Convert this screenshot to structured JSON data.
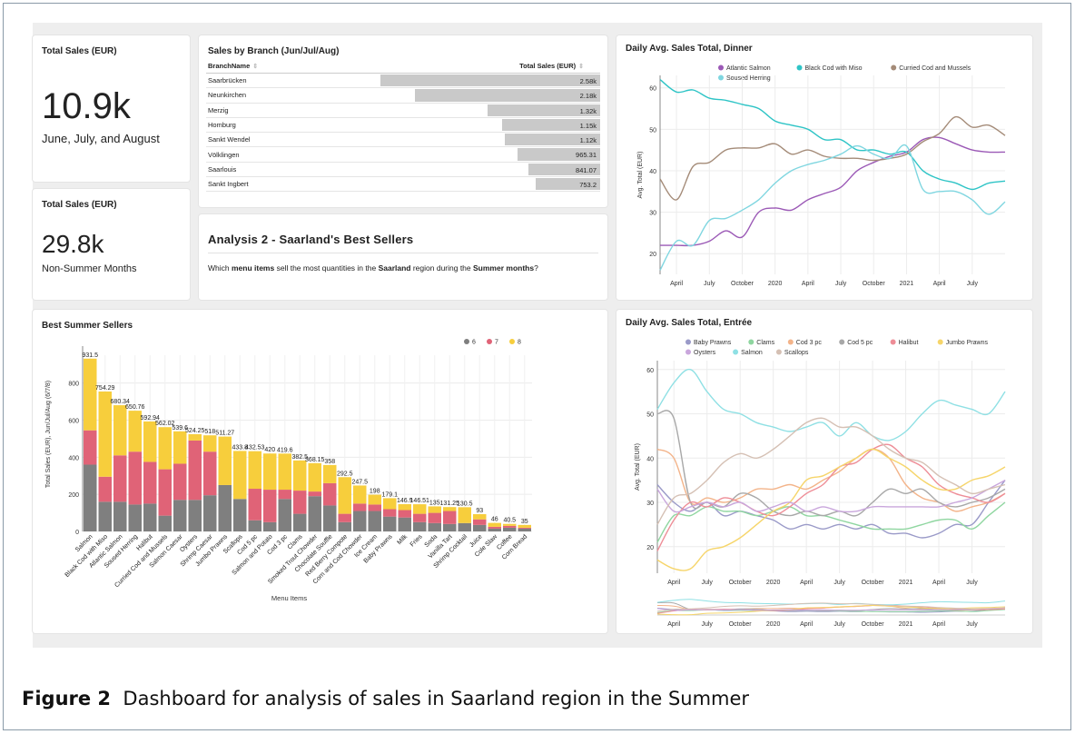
{
  "kpi_summer": {
    "title": "Total Sales (EUR)",
    "value": "10.9k",
    "subtitle": "June, July, and August"
  },
  "kpi_nonsummer": {
    "title": "Total Sales (EUR)",
    "value": "29.8k",
    "subtitle": "Non-Summer Months"
  },
  "branch_table": {
    "title": "Sales by Branch (Jun/Jul/Aug)",
    "col_branch": "BranchName",
    "col_total": "Total Sales (EUR)",
    "max_value": 2580,
    "rows": [
      {
        "name": "Saarbrücken",
        "label": "2.58k",
        "value": 2580
      },
      {
        "name": "Neunkirchen",
        "label": "2.18k",
        "value": 2180
      },
      {
        "name": "Merzig",
        "label": "1.32k",
        "value": 1320
      },
      {
        "name": "Homburg",
        "label": "1.15k",
        "value": 1150
      },
      {
        "name": "Sankt Wendel",
        "label": "1.12k",
        "value": 1120
      },
      {
        "name": "Völklingen",
        "label": "965.31",
        "value": 965.31
      },
      {
        "name": "Saarlouis",
        "label": "841.07",
        "value": 841.07
      },
      {
        "name": "Sankt Ingbert",
        "label": "753.2",
        "value": 753.2
      }
    ]
  },
  "analysis": {
    "title": "Analysis 2 - Saarland's Best Sellers",
    "q1": "Which ",
    "q2": "menu items",
    "q3": " sell the most quantities in the ",
    "q4": "Saarland",
    "q5": " region during the ",
    "q6": "Summer months",
    "q7": "?"
  },
  "caption": {
    "label": "Figure 2",
    "text": "Dashboard for analysis of sales in Saarland region in the Summer"
  },
  "chart_data": [
    {
      "type": "line",
      "title": "Daily Avg. Sales Total, Dinner",
      "ylabel": "Avg. Total (EUR)",
      "ylim": [
        15,
        63
      ],
      "yticks": [
        20,
        30,
        40,
        50,
        60
      ],
      "x_ticks": [
        "April",
        "July",
        "October",
        "2020",
        "April",
        "July",
        "October",
        "2021",
        "April",
        "July"
      ],
      "x_range": [
        0,
        10.5
      ],
      "legend_position": "top",
      "grid": true,
      "series": [
        {
          "name": "Atlantic Salmon",
          "color": "#9b59b6",
          "x": [
            0,
            0.5,
            1,
            1.5,
            2,
            2.5,
            3,
            3.5,
            4,
            4.5,
            5,
            5.5,
            6,
            6.5,
            7,
            7.5,
            8,
            8.5,
            9,
            9.5,
            10,
            10.5
          ],
          "y": [
            22,
            22,
            22,
            23,
            25.5,
            24,
            30,
            31,
            30.5,
            33,
            34.5,
            36,
            40,
            42,
            43.5,
            44.5,
            47.5,
            48,
            46.5,
            45,
            44.5,
            44.5
          ]
        },
        {
          "name": "Black Cod with Miso",
          "color": "#2ec4c6",
          "x": [
            0,
            0.5,
            1,
            1.5,
            2,
            2.5,
            3,
            3.5,
            4,
            4.5,
            5,
            5.5,
            6,
            6.5,
            7,
            7.5,
            8,
            8.5,
            9,
            9.5,
            10,
            10.5
          ],
          "y": [
            62,
            59,
            59.5,
            57.5,
            57,
            56,
            55,
            52,
            51,
            50,
            47.5,
            47.5,
            45,
            45,
            44,
            44.5,
            40,
            38,
            37,
            35.5,
            37,
            37.5
          ]
        },
        {
          "name": "Curried Cod and Mussels",
          "color": "#a48b78",
          "x": [
            0,
            0.5,
            1,
            1.5,
            2,
            2.5,
            3,
            3.5,
            4,
            4.5,
            5,
            5.5,
            6,
            6.5,
            7,
            7.5,
            8,
            8.5,
            9,
            9.5,
            10,
            10.5
          ],
          "y": [
            38,
            33,
            41,
            42,
            45,
            45.5,
            45.5,
            46.5,
            44,
            45,
            43.5,
            43,
            43,
            42.5,
            43,
            44,
            47,
            49,
            53,
            50.5,
            51,
            48.5
          ]
        },
        {
          "name": "Soused Herring",
          "color": "#7fd6e0",
          "x": [
            0,
            0.5,
            1,
            1.5,
            2,
            2.5,
            3,
            3.5,
            4,
            4.5,
            5,
            5.5,
            6,
            6.5,
            7,
            7.5,
            8,
            8.5,
            9,
            9.5,
            10,
            10.5
          ],
          "y": [
            16,
            23,
            22,
            28,
            28.5,
            30.5,
            33,
            37,
            40,
            41.5,
            42.5,
            44,
            46,
            44,
            43,
            46,
            35.5,
            35,
            35,
            33,
            29.5,
            32.5
          ]
        }
      ]
    },
    {
      "type": "line",
      "title": "Daily Avg. Sales Total, Entrée",
      "ylabel": "Avg. Total (EUR)",
      "ylim": [
        14,
        62
      ],
      "yticks": [
        20,
        30,
        40,
        50,
        60
      ],
      "x_ticks": [
        "April",
        "July",
        "October",
        "2020",
        "April",
        "July",
        "October",
        "2021",
        "April",
        "July"
      ],
      "x_range": [
        0,
        10.5
      ],
      "legend_position": "top",
      "grid": true,
      "series": [
        {
          "name": "Baby Prawns",
          "color": "#9a9ac8",
          "x": [
            0,
            0.5,
            1,
            1.5,
            2,
            2.5,
            3,
            3.5,
            4,
            4.5,
            5,
            5.5,
            6,
            6.5,
            7,
            7.5,
            8,
            8.5,
            9,
            9.5,
            10,
            10.5
          ],
          "y": [
            34,
            30,
            28,
            30,
            27,
            28,
            27,
            26,
            24,
            25,
            24,
            25,
            24,
            25,
            23,
            23,
            22,
            23,
            25,
            25,
            30,
            35
          ]
        },
        {
          "name": "Clams",
          "color": "#8fd6a0",
          "x": [
            0,
            0.5,
            1,
            1.5,
            2,
            2.5,
            3,
            3.5,
            4,
            4.5,
            5,
            5.5,
            6,
            6.5,
            7,
            7.5,
            8,
            8.5,
            9,
            9.5,
            10,
            10.5
          ],
          "y": [
            21,
            27,
            27,
            29,
            28,
            28,
            27,
            28,
            29,
            27,
            27,
            26,
            25,
            24,
            24,
            24,
            25,
            26,
            26,
            24,
            27,
            30
          ]
        },
        {
          "name": "Cod 3 pc",
          "color": "#f3b48a",
          "x": [
            0,
            0.5,
            1,
            1.5,
            2,
            2.5,
            3,
            3.5,
            4,
            4.5,
            5,
            5.5,
            6,
            6.5,
            7,
            7.5,
            8,
            8.5,
            9,
            9.5,
            10,
            10.5
          ],
          "y": [
            42,
            40,
            30,
            31,
            30,
            31,
            33,
            33,
            34,
            33,
            35,
            37,
            40,
            42,
            40,
            34,
            31,
            30,
            28,
            29,
            30,
            32
          ]
        },
        {
          "name": "Cod 5 pc",
          "color": "#a8a8a8",
          "x": [
            0,
            0.5,
            1,
            1.5,
            2,
            2.5,
            3,
            3.5,
            4,
            4.5,
            5,
            5.5,
            6,
            6.5,
            7,
            7.5,
            8,
            8.5,
            9,
            9.5,
            10,
            10.5
          ],
          "y": [
            50,
            49,
            30,
            30,
            29,
            32,
            31,
            28,
            27,
            28,
            27,
            28,
            27,
            30,
            33,
            32,
            33,
            30,
            29,
            30,
            31,
            33
          ]
        },
        {
          "name": "Halibut",
          "color": "#ee8d97",
          "x": [
            0,
            0.5,
            1,
            1.5,
            2,
            2.5,
            3,
            3.5,
            4,
            4.5,
            5,
            5.5,
            6,
            6.5,
            7,
            7.5,
            8,
            8.5,
            9,
            9.5,
            10,
            10.5
          ],
          "y": [
            19,
            26,
            30,
            29,
            31,
            30,
            28,
            27,
            29,
            32,
            34,
            38,
            39,
            42,
            43,
            40,
            38,
            34,
            32,
            31,
            30,
            32
          ]
        },
        {
          "name": "Jumbo Prawns",
          "color": "#f6d56a",
          "x": [
            0,
            0.5,
            1,
            1.5,
            2,
            2.5,
            3,
            3.5,
            4,
            4.5,
            5,
            5.5,
            6,
            6.5,
            7,
            7.5,
            8,
            8.5,
            9,
            9.5,
            10,
            10.5
          ],
          "y": [
            17,
            15,
            15,
            19,
            20,
            22,
            25,
            28,
            30,
            35,
            36,
            38,
            40,
            42,
            40,
            38,
            35,
            33,
            33,
            35,
            36,
            38
          ]
        },
        {
          "name": "Oysters",
          "color": "#c9a6dc",
          "x": [
            0,
            0.5,
            1,
            1.5,
            2,
            2.5,
            3,
            3.5,
            4,
            4.5,
            5,
            5.5,
            6,
            6.5,
            7,
            7.5,
            8,
            8.5,
            9,
            9.5,
            10,
            10.5
          ],
          "y": [
            33,
            28,
            29,
            30,
            29,
            30,
            28,
            29,
            30,
            28,
            29,
            28,
            28,
            29,
            29,
            29,
            29,
            29,
            30,
            31,
            33,
            35
          ]
        },
        {
          "name": "Salmon",
          "color": "#8fe0e4",
          "x": [
            0,
            0.5,
            1,
            1.5,
            2,
            2.5,
            3,
            3.5,
            4,
            4.5,
            5,
            5.5,
            6,
            6.5,
            7,
            7.5,
            8,
            8.5,
            9,
            9.5,
            10,
            10.5
          ],
          "y": [
            51,
            57,
            60,
            55,
            51,
            50,
            48,
            47,
            46,
            47,
            48,
            45,
            48,
            45,
            44,
            46,
            50,
            53,
            52,
            51,
            50,
            55
          ]
        },
        {
          "name": "Scallops",
          "color": "#d5c0b4",
          "x": [
            0,
            0.5,
            1,
            1.5,
            2,
            2.5,
            3,
            3.5,
            4,
            4.5,
            5,
            5.5,
            6,
            6.5,
            7,
            7.5,
            8,
            8.5,
            9,
            9.5,
            10,
            10.5
          ],
          "y": [
            25,
            31,
            32,
            35,
            39,
            41,
            40,
            42,
            45,
            48,
            49,
            47,
            47,
            45,
            42,
            40,
            39,
            36,
            34,
            32,
            33,
            34
          ]
        }
      ]
    },
    {
      "type": "bar",
      "title": "Best Summer Sellers",
      "xlabel": "Menu Items",
      "ylabel": "Total Sales (EUR), Jun/Jul/Aug (6/7/8)",
      "ylim": [
        0,
        950
      ],
      "yticks": [
        0,
        200,
        400,
        600,
        800
      ],
      "stacked": true,
      "legend_position": "top-right",
      "categories": [
        "Salmon",
        "Black Cod with Miso",
        "Atlantic Salmon",
        "Soused Herring",
        "Halibut",
        "Curried Cod and Mussels",
        "Salmon Caesar",
        "Oysters",
        "Shrimp Caesar",
        "Jumbo Prawns",
        "Scallops",
        "Cod 5 pc",
        "Salmon and Potato",
        "Cod 3 pc",
        "Clams",
        "Smoked Trout Chowder",
        "Chocolate Souffle",
        "Red Berry Compote",
        "Corn and Cod Chowder",
        "Ice Cream",
        "Baby Prawns",
        "Milk",
        "Fries",
        "Soda",
        "Vanilla Tart",
        "Shrimp Cocktail",
        "Juice",
        "Cole Slaw",
        "Coffee",
        "Corn Bread"
      ],
      "totals": [
        931.5,
        754.29,
        680.34,
        650.76,
        592.94,
        562.02,
        539.6,
        524.25,
        518,
        511.27,
        433.8,
        432.53,
        420,
        419.6,
        382.5,
        368.15,
        358,
        292.5,
        247.5,
        198,
        179.1,
        146.9,
        146.51,
        135,
        131.25,
        130.5,
        93,
        46,
        40.5,
        35
      ],
      "total_labels": [
        "931.5",
        "754.29",
        "680.34",
        "650.76",
        "592.94",
        "562.02",
        "539.6",
        "524.25",
        "518",
        "511.27",
        "433.8",
        "432.53",
        "420",
        "419.6",
        "382.5",
        "368.15",
        "358",
        "292.5",
        "247.5",
        "198",
        "179.1",
        "146.9",
        "146.51",
        "135",
        "131.25",
        "130.5",
        "93",
        "46",
        "40.5",
        "35"
      ],
      "series": [
        {
          "name": "6",
          "color": "#7f7f7f",
          "values": [
            360,
            160,
            160,
            145,
            150,
            85,
            170,
            170,
            195,
            250,
            175,
            60,
            50,
            175,
            95,
            190,
            140,
            50,
            110,
            110,
            80,
            75,
            50,
            45,
            40,
            45,
            35,
            15,
            20,
            15
          ]
        },
        {
          "name": "7",
          "color": "#e06377",
          "values": [
            185,
            135,
            250,
            285,
            225,
            250,
            195,
            320,
            235,
            0,
            0,
            170,
            175,
            50,
            125,
            25,
            120,
            45,
            40,
            35,
            40,
            40,
            45,
            55,
            70,
            0,
            30,
            10,
            10,
            5
          ]
        },
        {
          "name": "8",
          "color": "#f7ce3c",
          "values": [
            386.5,
            459.29,
            270.34,
            220.76,
            217.94,
            227.02,
            174.6,
            34.25,
            88,
            261.27,
            258.8,
            202.53,
            195,
            194.6,
            162.5,
            153.15,
            98,
            197.5,
            97.5,
            53,
            59.1,
            31.9,
            51.51,
            35,
            21.25,
            85.5,
            28,
            21,
            10.5,
            15
          ]
        }
      ]
    }
  ]
}
